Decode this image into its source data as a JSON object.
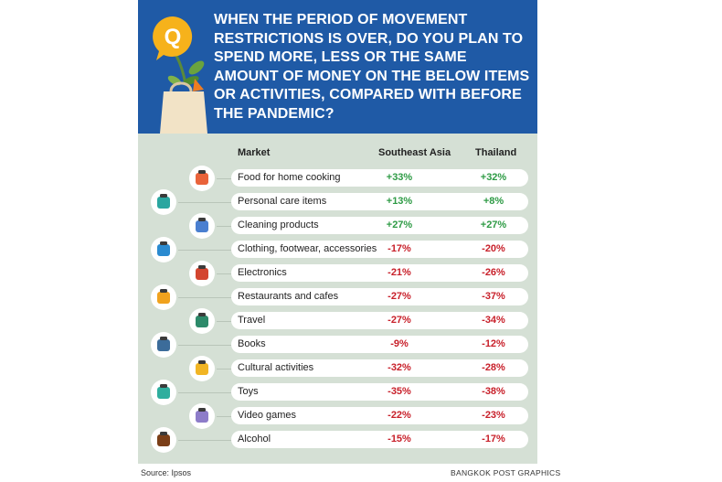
{
  "question": "When the period of movement restrictions is over, do you plan to spend more, less or the same amount of money on the below items or activities, compared with before the pandemic?",
  "badge_letter": "Q",
  "colors": {
    "header_bg": "#1f5aa6",
    "badge": "#f6b21b",
    "panel_bg": "#d5e0d5",
    "positive": "#2e9b45",
    "negative": "#c8202a"
  },
  "chart_data": {
    "type": "table",
    "columns": [
      "Market",
      "Southeast Asia",
      "Thailand"
    ],
    "rows": [
      {
        "label": "Food for home cooking",
        "icon": "cooking-pot-icon",
        "sea": "+33%",
        "th": "+32%"
      },
      {
        "label": "Personal care items",
        "icon": "toiletries-icon",
        "sea": "+13%",
        "th": "+8%"
      },
      {
        "label": "Cleaning products",
        "icon": "cleaning-products-icon",
        "sea": "+27%",
        "th": "+27%"
      },
      {
        "label": "Clothing, footwear, accessories",
        "icon": "tshirt-icon",
        "sea": "-17%",
        "th": "-20%"
      },
      {
        "label": "Electronics",
        "icon": "appliances-icon",
        "sea": "-21%",
        "th": "-26%"
      },
      {
        "label": "Restaurants and cafes",
        "icon": "restaurant-icon",
        "sea": "-27%",
        "th": "-37%"
      },
      {
        "label": "Travel",
        "icon": "globe-plane-icon",
        "sea": "-27%",
        "th": "-34%"
      },
      {
        "label": "Books",
        "icon": "books-icon",
        "sea": "-9%",
        "th": "-12%"
      },
      {
        "label": "Cultural activities",
        "icon": "theatre-masks-icon",
        "sea": "-32%",
        "th": "-28%"
      },
      {
        "label": "Toys",
        "icon": "puzzle-icon",
        "sea": "-35%",
        "th": "-38%"
      },
      {
        "label": "Video games",
        "icon": "gamepad-icon",
        "sea": "-22%",
        "th": "-23%"
      },
      {
        "label": "Alcohol",
        "icon": "bottle-icon",
        "sea": "-15%",
        "th": "-17%"
      }
    ]
  },
  "footer": {
    "source": "Source: Ipsos",
    "credit": "BANGKOK POST GRAPHICS"
  }
}
